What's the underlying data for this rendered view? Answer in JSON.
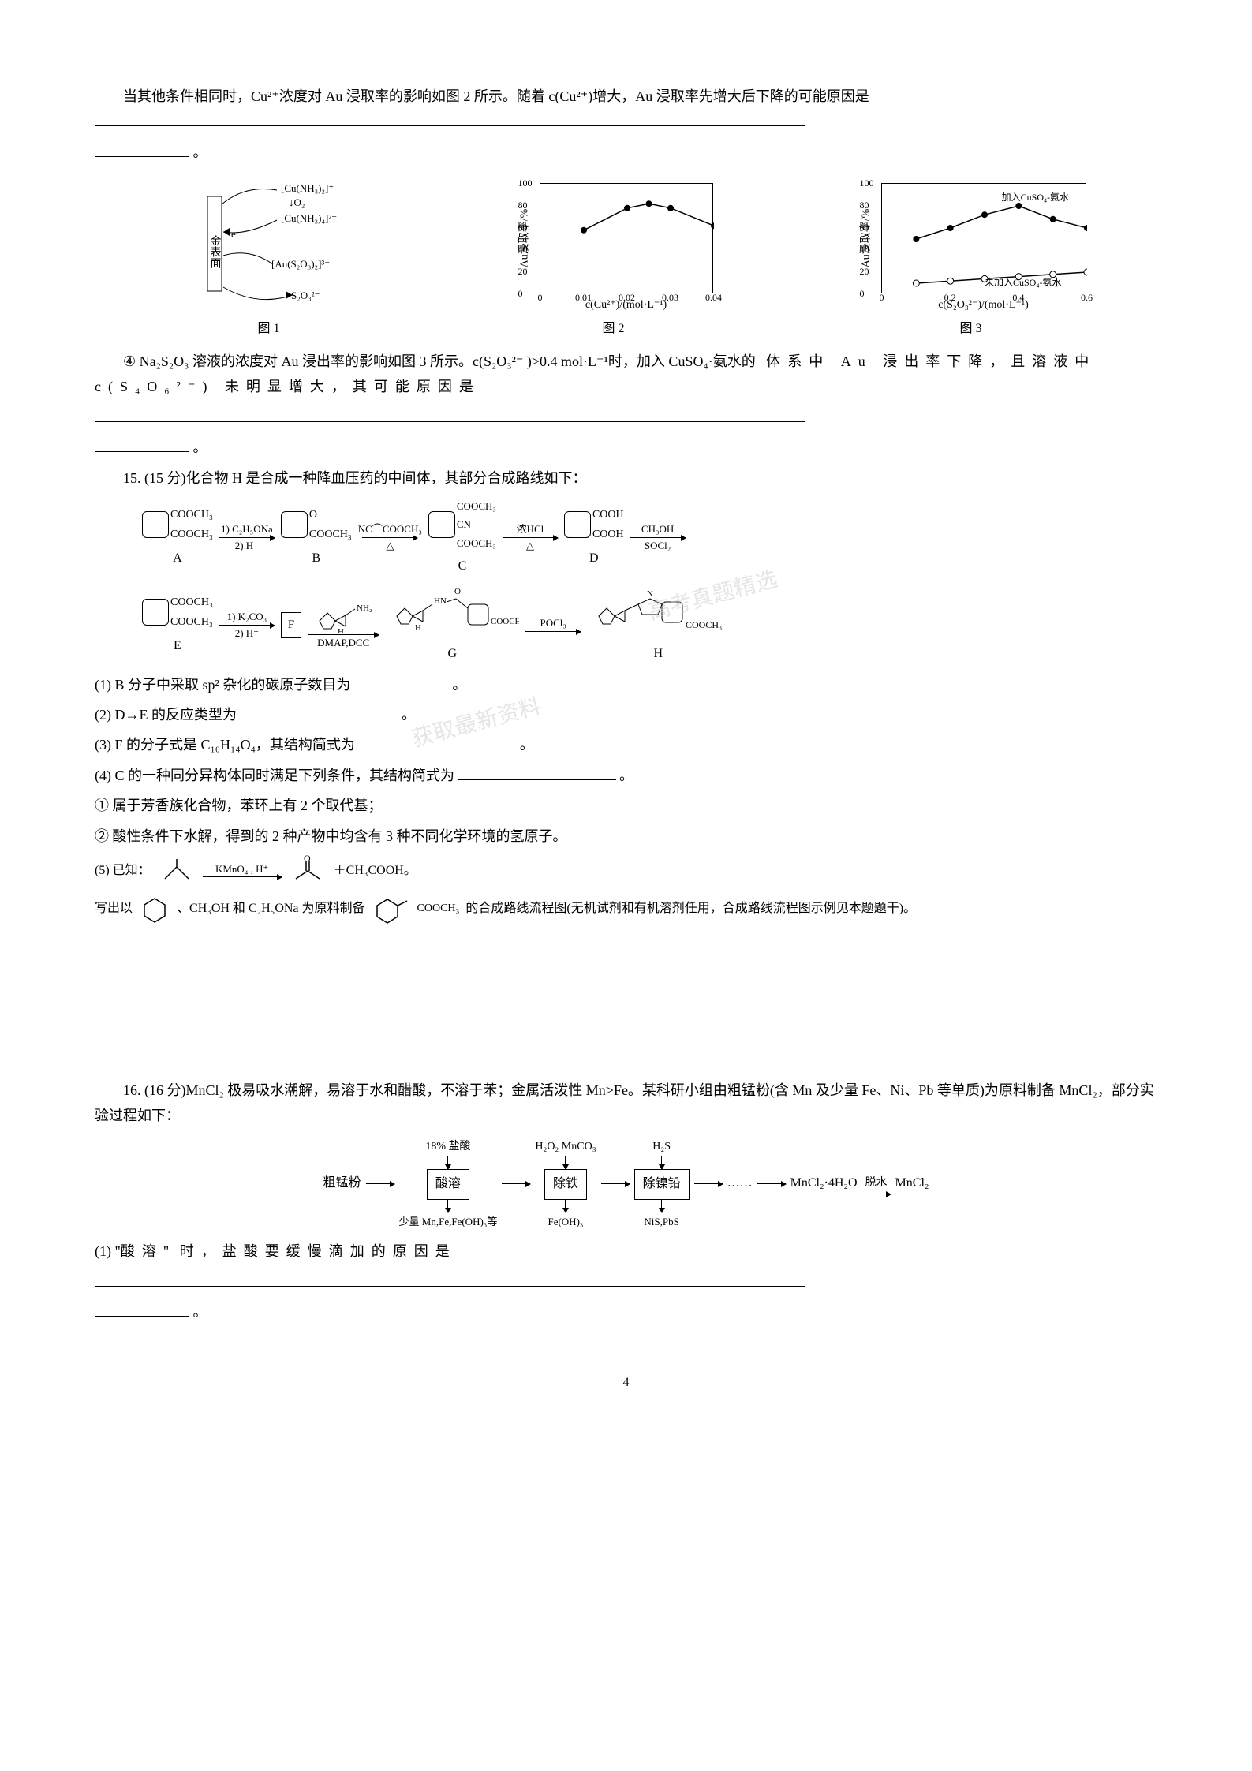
{
  "intro": {
    "line1": "当其他条件相同时，Cu²⁺浓度对 Au 浸取率的影响如图 2 所示。随着 c(Cu²⁺)增大，Au 浸取率先增大后下降的可能原因是",
    "blank_end": "。"
  },
  "fig1": {
    "caption": "图 1",
    "labels": {
      "top": "[Cu(NH₃)₂]⁺",
      "o2": "↓O₂",
      "mid": "[Cu(NH₃)₄]²⁺",
      "side": "金表面",
      "elec": "e⁻",
      "au": "[Au(S₂O₃)₂]³⁻",
      "bottom": "S₂O₃²⁻"
    }
  },
  "fig2": {
    "caption": "图 2",
    "ylabel": "Au浸取率/%",
    "xlabel": "c(Cu²⁺)/(mol·L⁻¹)",
    "ylim": [
      0,
      100
    ],
    "ytick_step": 20,
    "yticks": [
      0,
      20,
      40,
      60,
      80,
      100
    ],
    "xticks": [
      "0",
      "0.01",
      "0.02",
      "0.03",
      "0.04"
    ],
    "points": [
      {
        "x": 0.01,
        "y": 58
      },
      {
        "x": 0.02,
        "y": 78
      },
      {
        "x": 0.025,
        "y": 82
      },
      {
        "x": 0.03,
        "y": 78
      },
      {
        "x": 0.04,
        "y": 62
      }
    ],
    "marker": "circle-filled",
    "line_color": "#000000",
    "background_color": "#ffffff"
  },
  "fig3": {
    "caption": "图 3",
    "ylabel": "Au浸取率/%",
    "xlabel": "c(S₂O₃²⁻)/(mol·L⁻¹)",
    "ylim": [
      0,
      100
    ],
    "ytick_step": 20,
    "yticks": [
      0,
      20,
      40,
      60,
      80,
      100
    ],
    "xticks": [
      "0",
      "0.2",
      "0.4",
      "0.6"
    ],
    "series1": {
      "label": "加入CuSO₄-氨水",
      "marker": "circle-filled",
      "points": [
        {
          "x": 0.1,
          "y": 50
        },
        {
          "x": 0.2,
          "y": 60
        },
        {
          "x": 0.3,
          "y": 72
        },
        {
          "x": 0.4,
          "y": 80
        },
        {
          "x": 0.5,
          "y": 68
        },
        {
          "x": 0.6,
          "y": 60
        }
      ]
    },
    "series2": {
      "label": "未加入CuSO₄-氨水",
      "marker": "circle-open",
      "points": [
        {
          "x": 0.1,
          "y": 10
        },
        {
          "x": 0.2,
          "y": 12
        },
        {
          "x": 0.3,
          "y": 14
        },
        {
          "x": 0.4,
          "y": 16
        },
        {
          "x": 0.5,
          "y": 18
        },
        {
          "x": 0.6,
          "y": 20
        }
      ]
    },
    "line_color": "#000000",
    "background_color": "#ffffff"
  },
  "q4": {
    "text": "④ Na₂S₂O₃ 溶液的浓度对 Au 浸出率的影响如图 3 所示。c(S₂O₃²⁻ )>0.4 mol·L⁻¹时，加入 CuSO₄·氨水的体系中 Au 浸出率下降，且溶液中 c(S₄O₆²⁻) 未明显增大，其可能原因是",
    "blank_end": "。"
  },
  "q15": {
    "title": "15. (15 分)化合物 H 是合成一种降血压药的中间体，其部分合成路线如下：",
    "molA": {
      "top": "COOCH₃",
      "bottom": "COOCH₃",
      "label": "A"
    },
    "arrAB": {
      "top": "1) C₂H₅ONa",
      "bottom": "2) H⁺"
    },
    "molB": {
      "top": "O",
      "right": "COOCH₃",
      "label": "B"
    },
    "arrBC": {
      "top": "NC⌒COOCH₃",
      "bottom": "△"
    },
    "molC": {
      "top": "COOCH₃",
      "mid": "CN",
      "bottom": "COOCH₃",
      "label": "C"
    },
    "arrCD": {
      "top": "浓HCl",
      "bottom": "△"
    },
    "molD": {
      "top": "COOH",
      "bottom": "COOH",
      "label": "D"
    },
    "arrDE": {
      "top": "CH₃OH",
      "bottom": "SOCl₂"
    },
    "molE": {
      "top": "COOCH₃",
      "bottom": "COOCH₃",
      "label": "E"
    },
    "arrEF": {
      "top": "1) K₂CO₃",
      "bottom": "2) H⁺"
    },
    "molF": {
      "label": "F",
      "boxed": true
    },
    "arrFG": {
      "top_structure": "indole-NH₂",
      "bottom": "DMAP,DCC"
    },
    "molG": {
      "label": "G"
    },
    "arrGH": {
      "top": "POCl₃"
    },
    "molH": {
      "right": "COOCH₃",
      "label": "H"
    },
    "sub1": "(1) B 分子中采取 sp² 杂化的碳原子数目为",
    "sub1_end": "。",
    "sub2": "(2) D→E 的反应类型为",
    "sub2_end": "。",
    "sub3": "(3) F 的分子式是 C₁₀H₁₄O₄，其结构简式为",
    "sub3_end": "。",
    "sub4": "(4) C 的一种同分异构体同时满足下列条件，其结构简式为",
    "sub4_end": "。",
    "sub4_1": "① 属于芳香族化合物，苯环上有 2 个取代基；",
    "sub4_2": "② 酸性条件下水解，得到的 2 种产物中均含有 3 种不同化学环境的氢原子。",
    "sub5": "(5) 已知：",
    "sub5_reagent": "KMnO₄ , H⁺",
    "sub5_prod": "＋CH₃COOH。",
    "sub5_line2a": "写出以",
    "sub5_line2b": "、CH₃OH 和 C₂H₅ONa 为原料制备",
    "sub5_target": "COOCH₃",
    "sub5_line2c": "的合成路线流程图(无机试剂和有机溶剂任用，合成路线流程图示例见本题题干)。"
  },
  "q16": {
    "title": "16. (16 分)MnCl₂ 极易吸水潮解，易溶于水和醋酸，不溶于苯；金属活泼性 Mn>Fe。某科研小组由粗锰粉(含 Mn 及少量 Fe、Ni、Pb 等单质)为原料制备 MnCl₂，部分实验过程如下：",
    "process": {
      "start": "粗锰粉",
      "r1": "18% 盐酸",
      "box1": "酸溶",
      "under1": "少量 Mn,Fe,Fe(OH)₃等",
      "r2": "H₂O₂  MnCO₃",
      "box2": "除铁",
      "under2": "Fe(OH)₃",
      "r3": "H₂S",
      "box3": "除镍铅",
      "under3": "NiS,PbS",
      "dots": "……",
      "prod1": "MnCl₂·4H₂O",
      "r4": "脱水",
      "prod2": "MnCl₂"
    },
    "sub1_a": "(1) \"",
    "sub1_b": "酸溶",
    "sub1_c": "\" 时，盐酸要缓慢滴加的原因是",
    "sub1_end": "。"
  },
  "page_num": "4"
}
